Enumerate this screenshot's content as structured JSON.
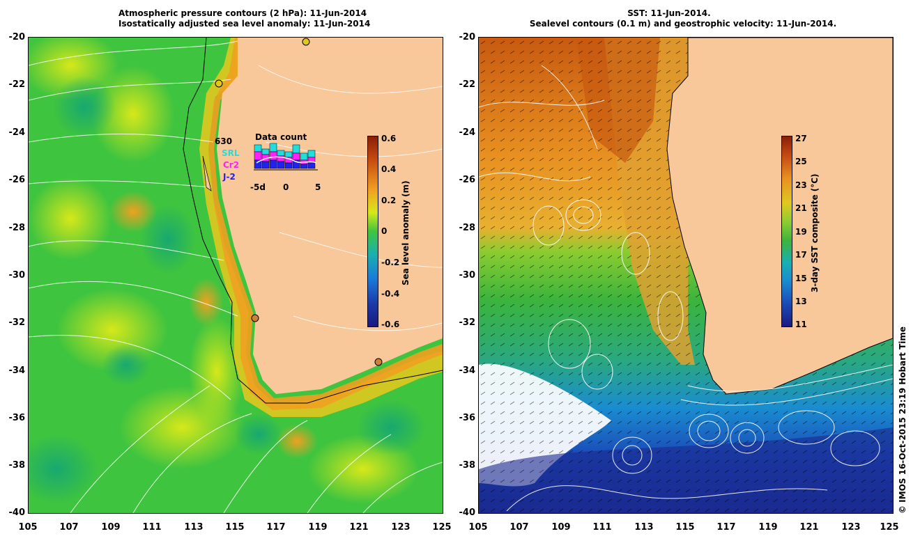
{
  "left_panel": {
    "title_line1": "Atmospheric pressure contours (2 hPa): 11-Jun-2014",
    "title_line2": "Isostatically adjusted sea level anomaly: 11-Jun-2014",
    "colorbar_label": "Sea level anomaly (m)",
    "colorbar_ticks": [
      "0.6",
      "0.4",
      "0.2",
      "0",
      "-0.2",
      "-0.4",
      "-0.6"
    ],
    "inset": {
      "title": "Data count",
      "count": "630",
      "satellites": [
        "SRL",
        "Cr2",
        "J-2"
      ],
      "sat_colors": [
        "#22dddd",
        "#ff22ff",
        "#2222ee"
      ],
      "x_ticks": [
        "-5d",
        "0",
        "5"
      ]
    }
  },
  "right_panel": {
    "title_line1": "SST: 11-Jun-2014.",
    "title_line2": "Sealevel contours (0.1 m) and geostrophic velocity: 11-Jun-2014.",
    "colorbar_label": "3-day SST composite (°C)",
    "colorbar_ticks": [
      "27",
      "25",
      "23",
      "21",
      "19",
      "17",
      "15",
      "13",
      "11"
    ]
  },
  "axes": {
    "y_ticks": [
      "-20",
      "-22",
      "-24",
      "-26",
      "-28",
      "-30",
      "-32",
      "-34",
      "-36",
      "-38",
      "-40"
    ],
    "x_ticks": [
      "105",
      "107",
      "109",
      "111",
      "113",
      "115",
      "117",
      "119",
      "121",
      "123",
      "125"
    ]
  },
  "stamp": "© IMOS 16-Oct-2015 23:19 Hobart Time",
  "colors": {
    "land": "#f9c89a",
    "ocean_green": "#3fc43f",
    "warm_sst": "#c85a10",
    "cold_sst": "#1a3aa8"
  }
}
